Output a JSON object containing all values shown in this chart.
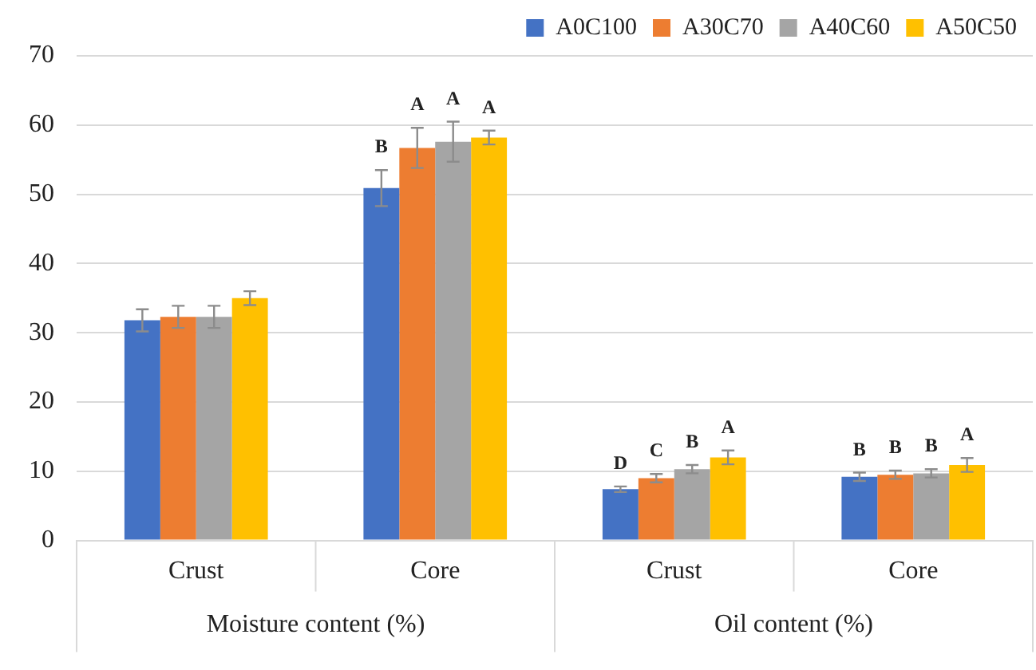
{
  "chart_data": {
    "type": "bar",
    "categories": [
      "Crust",
      "Core",
      "Crust",
      "Core"
    ],
    "series": [
      {
        "name": "A0C100",
        "color": "#4472c4",
        "values": [
          31.8,
          50.9,
          7.4,
          9.2
        ],
        "errors": [
          1.6,
          2.6,
          0.4,
          0.6
        ],
        "value_labels": [
          null,
          "B",
          "D",
          "B"
        ]
      },
      {
        "name": "A30C70",
        "color": "#ed7d31",
        "values": [
          32.3,
          56.7,
          9.0,
          9.5
        ],
        "errors": [
          1.6,
          2.9,
          0.6,
          0.6
        ],
        "value_labels": [
          null,
          "A",
          "C",
          "B"
        ]
      },
      {
        "name": "A40C60",
        "color": "#a5a5a5",
        "values": [
          32.3,
          57.6,
          10.3,
          9.7
        ],
        "errors": [
          1.6,
          2.9,
          0.6,
          0.6
        ],
        "value_labels": [
          null,
          "A",
          "B",
          "B"
        ]
      },
      {
        "name": "A50C50",
        "color": "#ffc000",
        "values": [
          35.0,
          58.2,
          12.0,
          10.9
        ],
        "errors": [
          1.0,
          1.0,
          1.0,
          1.0
        ],
        "value_labels": [
          null,
          "A",
          "A",
          "A"
        ]
      }
    ],
    "annotations": [
      "Moisture content (%)",
      "Oil content (%)"
    ],
    "ylim": [
      0,
      70
    ],
    "yticks": [
      0,
      10,
      20,
      30,
      40,
      50,
      60,
      70
    ],
    "grid": "y",
    "legend": "top right"
  }
}
